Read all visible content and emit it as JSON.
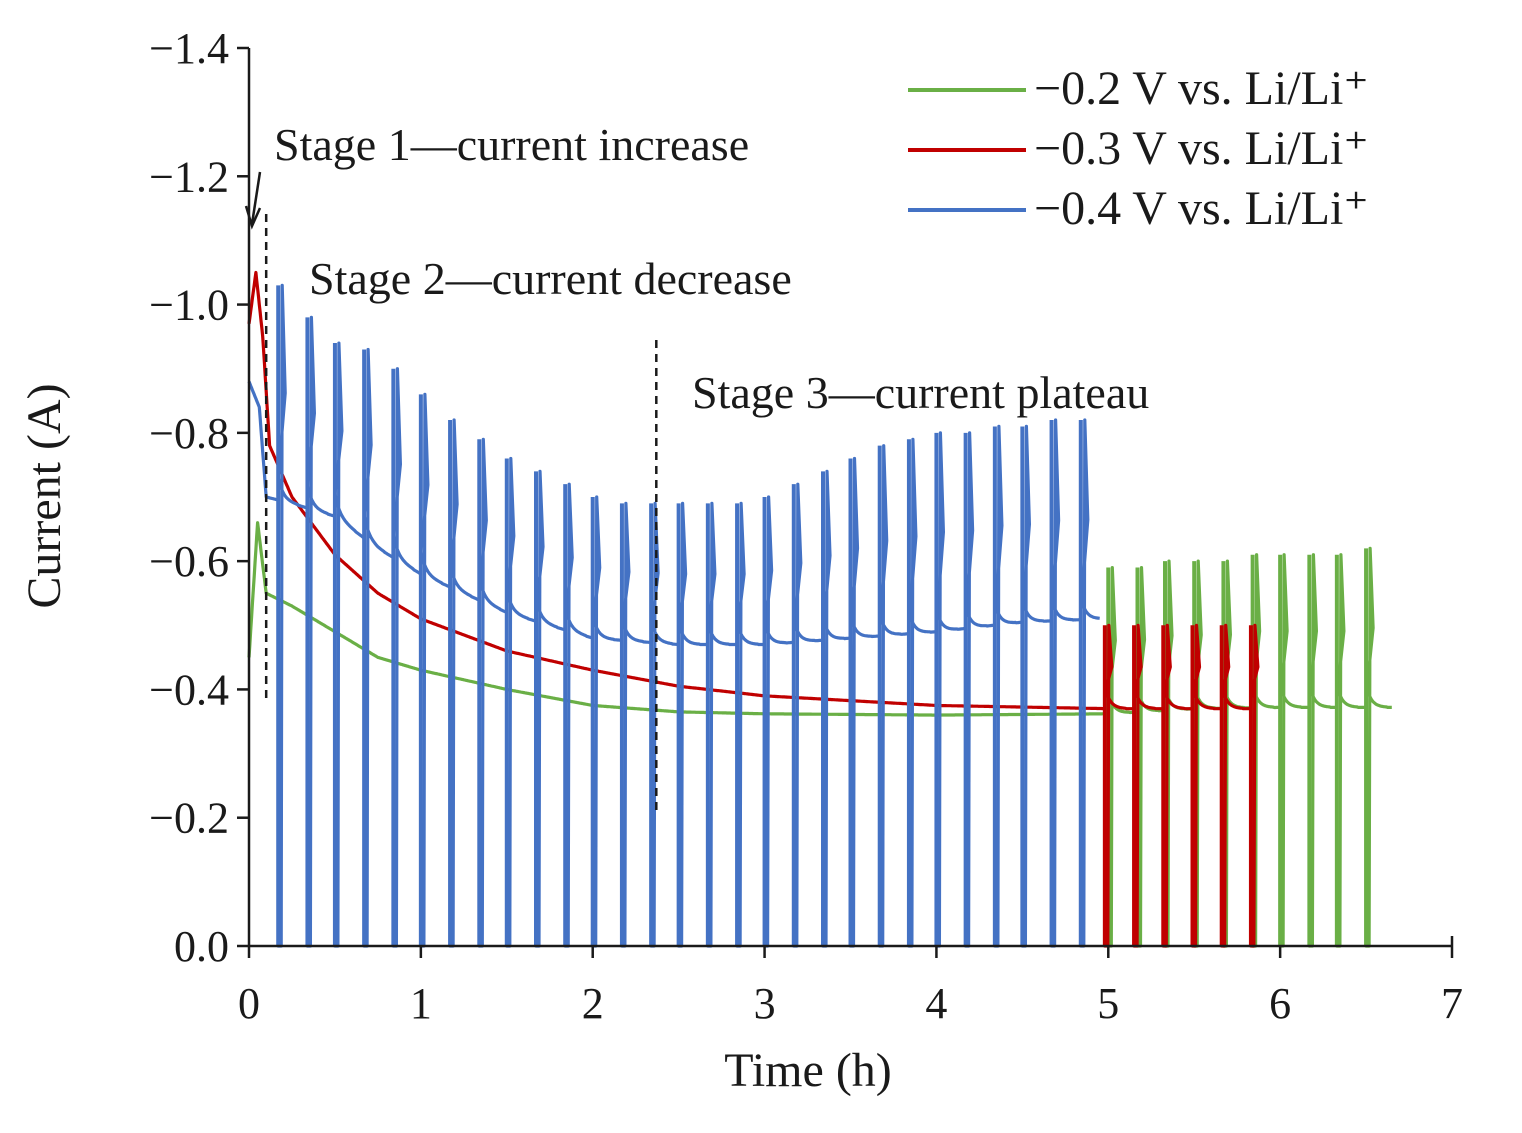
{
  "chart_data": {
    "type": "line",
    "title": "",
    "xlabel": "Time (h)",
    "ylabel": "Current (A)",
    "xlim": [
      0,
      7
    ],
    "ylim": [
      0.0,
      -1.4
    ],
    "x_ticks": [
      0,
      1,
      2,
      3,
      4,
      5,
      6,
      7
    ],
    "x_tick_labels": [
      "0",
      "1",
      "2",
      "3",
      "4",
      "5",
      "6",
      "7"
    ],
    "y_ticks": [
      0.0,
      -0.2,
      -0.4,
      -0.6,
      -0.8,
      -1.0,
      -1.2,
      -1.4
    ],
    "y_tick_labels": [
      "0.0",
      "−0.2",
      "−0.4",
      "−0.6",
      "−0.8",
      "−1.0",
      "−1.2",
      "−1.4"
    ],
    "grid": false,
    "legend_position": "top-right",
    "legend": [
      {
        "label": "−0.2 V vs. Li/Li⁺",
        "color": "#6aaf46"
      },
      {
        "label": "−0.3 V vs. Li/Li⁺",
        "color": "#c00000"
      },
      {
        "label": "−0.4 V vs. Li/Li⁺",
        "color": "#4472c4"
      }
    ],
    "annotations": [
      {
        "text": "Stage 1—current increase",
        "x": 0.1
      },
      {
        "text": "Stage 2—current decrease",
        "x": 0.1
      },
      {
        "text": "Stage 3—current plateau",
        "x": 2.37
      }
    ],
    "stage_divider_x": [
      0.1,
      2.37
    ],
    "series": [
      {
        "name": "−0.2 V vs. Li/Li⁺",
        "color": "#6aaf46",
        "end_time": 6.65,
        "baseline": [
          [
            0.0,
            -0.45
          ],
          [
            0.05,
            -0.66
          ],
          [
            0.1,
            -0.55
          ],
          [
            0.25,
            -0.53
          ],
          [
            0.5,
            -0.49
          ],
          [
            0.75,
            -0.45
          ],
          [
            1.0,
            -0.43
          ],
          [
            1.5,
            -0.4
          ],
          [
            2.0,
            -0.375
          ],
          [
            2.5,
            -0.365
          ],
          [
            3.0,
            -0.362
          ],
          [
            4.0,
            -0.36
          ],
          [
            5.0,
            -0.362
          ],
          [
            5.5,
            -0.37
          ],
          [
            6.0,
            -0.372
          ],
          [
            6.65,
            -0.372
          ]
        ],
        "pulse_times": [
          5.0,
          5.17,
          5.33,
          5.5,
          5.67,
          5.84,
          6.0,
          6.17,
          6.33,
          6.5
        ],
        "pulse_peaks": [
          -0.59,
          -0.59,
          -0.6,
          -0.6,
          -0.6,
          -0.61,
          -0.61,
          -0.61,
          -0.61,
          -0.62
        ],
        "pulse_floor": 0.0
      },
      {
        "name": "−0.3 V vs. Li/Li⁺",
        "color": "#c00000",
        "end_time": 5.85,
        "baseline": [
          [
            0.0,
            -0.97
          ],
          [
            0.04,
            -1.05
          ],
          [
            0.08,
            -0.95
          ],
          [
            0.12,
            -0.78
          ],
          [
            0.25,
            -0.7
          ],
          [
            0.5,
            -0.61
          ],
          [
            0.75,
            -0.55
          ],
          [
            1.0,
            -0.51
          ],
          [
            1.5,
            -0.46
          ],
          [
            2.0,
            -0.43
          ],
          [
            2.5,
            -0.405
          ],
          [
            3.0,
            -0.39
          ],
          [
            4.0,
            -0.375
          ],
          [
            5.0,
            -0.37
          ],
          [
            5.85,
            -0.37
          ]
        ],
        "pulse_times": [
          4.98,
          5.15,
          5.32,
          5.49,
          5.66,
          5.83
        ],
        "pulse_peaks": [
          -0.5,
          -0.5,
          -0.5,
          -0.5,
          -0.5,
          -0.5
        ],
        "pulse_floor": 0.0
      },
      {
        "name": "−0.4 V vs. Li/Li⁺",
        "color": "#4472c4",
        "end_time": 4.95,
        "baseline": [
          [
            0.0,
            -0.88
          ],
          [
            0.06,
            -0.84
          ],
          [
            0.1,
            -0.7
          ],
          [
            0.25,
            -0.69
          ],
          [
            0.5,
            -0.67
          ],
          [
            0.75,
            -0.62
          ],
          [
            1.0,
            -0.58
          ],
          [
            1.5,
            -0.52
          ],
          [
            2.0,
            -0.48
          ],
          [
            2.5,
            -0.47
          ],
          [
            3.0,
            -0.47
          ],
          [
            3.5,
            -0.48
          ],
          [
            4.0,
            -0.49
          ],
          [
            4.5,
            -0.505
          ],
          [
            4.95,
            -0.51
          ]
        ],
        "pulse_times": [
          0.17,
          0.34,
          0.5,
          0.67,
          0.84,
          1.0,
          1.17,
          1.34,
          1.5,
          1.67,
          1.84,
          2.0,
          2.17,
          2.34,
          2.5,
          2.67,
          2.84,
          3.0,
          3.17,
          3.34,
          3.5,
          3.67,
          3.84,
          4.0,
          4.17,
          4.34,
          4.5,
          4.67,
          4.84
        ],
        "pulse_peaks": [
          -1.03,
          -0.98,
          -0.94,
          -0.93,
          -0.9,
          -0.86,
          -0.82,
          -0.79,
          -0.76,
          -0.74,
          -0.72,
          -0.7,
          -0.69,
          -0.69,
          -0.69,
          -0.69,
          -0.69,
          -0.7,
          -0.72,
          -0.74,
          -0.76,
          -0.78,
          -0.79,
          -0.8,
          -0.8,
          -0.81,
          -0.81,
          -0.82,
          -0.82
        ],
        "pulse_floor": 0.0
      }
    ]
  }
}
